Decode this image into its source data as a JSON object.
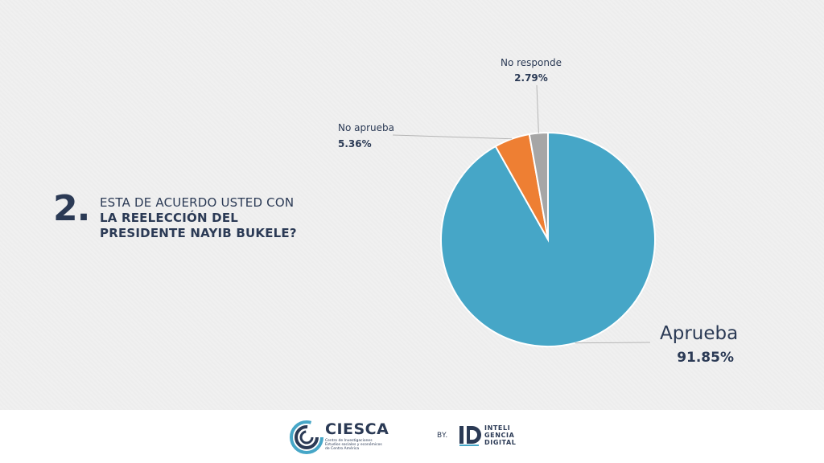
{
  "question": {
    "number": "2.",
    "line1": "ESTA DE ACUERDO USTED CON",
    "line2": "LA REELECCIÓN DEL",
    "line3": "PRESIDENTE NAYIB BUKELE?"
  },
  "chart_data": {
    "type": "pie",
    "title": "",
    "slices": [
      {
        "label": "Aprueba",
        "value": 91.85,
        "display": "91.85%",
        "color": "#46a6c7"
      },
      {
        "label": "No aprueba",
        "value": 5.36,
        "display": "5.36%",
        "color": "#ee7f33"
      },
      {
        "label": "No responde",
        "value": 2.79,
        "display": "2.79%",
        "color": "#a6a6a6"
      }
    ]
  },
  "footer": {
    "ciesca": {
      "name": "CIESCA",
      "subtitle": "Centro de Investigaciones Estudios sociales y económicos de Centro América"
    },
    "by": "BY.",
    "partner": {
      "line1": "INTELI",
      "line2": "GENCIA",
      "line3": "DIGITAL"
    }
  },
  "colors": {
    "text": "#2b3a55",
    "background": "#f0f0f0"
  }
}
